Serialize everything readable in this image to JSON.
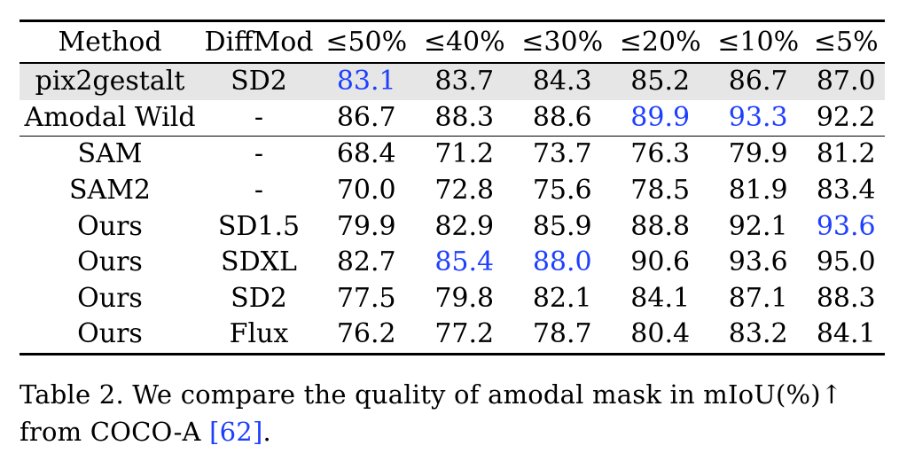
{
  "table": {
    "headers": [
      "Method",
      "DiffMod",
      "≤50%",
      "≤40%",
      "≤30%",
      "≤20%",
      "≤10%",
      "≤5%"
    ],
    "rows": [
      {
        "method": "pix2gestalt",
        "diffmod": "SD2",
        "values": [
          "83.1",
          "83.7",
          "84.3",
          "85.2",
          "86.7",
          "87.0"
        ]
      },
      {
        "method": "Amodal Wild",
        "diffmod": "-",
        "values": [
          "86.7",
          "88.3",
          "88.6",
          "89.9",
          "93.3",
          "92.2"
        ]
      },
      {
        "method": "SAM",
        "diffmod": "-",
        "values": [
          "68.4",
          "71.2",
          "73.7",
          "76.3",
          "79.9",
          "81.2"
        ]
      },
      {
        "method": "SAM2",
        "diffmod": "-",
        "values": [
          "70.0",
          "72.8",
          "75.6",
          "78.5",
          "81.9",
          "83.4"
        ]
      },
      {
        "method": "Ours",
        "diffmod": "SD1.5",
        "values": [
          "79.9",
          "82.9",
          "85.9",
          "88.8",
          "92.1",
          "93.6"
        ]
      },
      {
        "method": "Ours",
        "diffmod": "SDXL",
        "values": [
          "82.7",
          "85.4",
          "88.0",
          "90.6",
          "93.6",
          "95.0"
        ]
      },
      {
        "method": "Ours",
        "diffmod": "SD2",
        "values": [
          "77.5",
          "79.8",
          "82.1",
          "84.1",
          "87.1",
          "88.3"
        ]
      },
      {
        "method": "Ours",
        "diffmod": "Flux",
        "values": [
          "76.2",
          "77.2",
          "78.7",
          "80.4",
          "83.2",
          "84.1"
        ]
      }
    ],
    "highlight_colors": {
      "second_best": "#1f3fff",
      "shaded_row": "#e6e6e6"
    }
  },
  "caption": {
    "prefix": "Table 2.  We compare the quality of amodal mask in mIoU(%)↑ from COCO-A ",
    "citation": "[62]",
    "suffix": "."
  }
}
